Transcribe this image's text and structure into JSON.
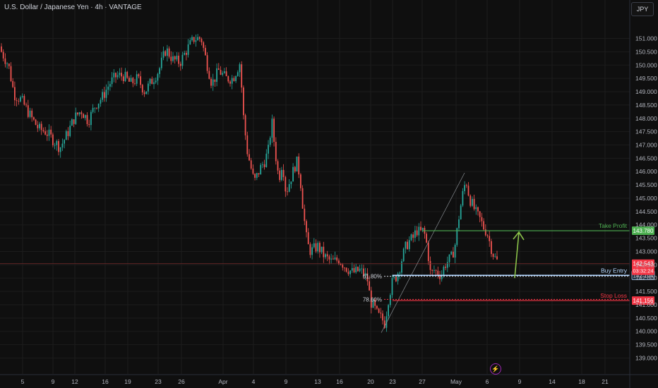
{
  "header": {
    "title": "U.S. Dollar / Japanese Yen · 4h · VANTAGE",
    "currency_button": "JPY"
  },
  "colors": {
    "bg": "#0f0f0f",
    "up": "#26a69a",
    "down": "#ef5350",
    "grid": "#1c1c1c",
    "axis_text": "#b2b5be",
    "tp": "#4caf50",
    "sl": "#f23645",
    "entry": "#b3d7ff",
    "arrow": "#8bc34a"
  },
  "icons": {
    "replay": "lightning-icon"
  },
  "chart_data": {
    "type": "candlestick",
    "title": "U.S. Dollar / Japanese Yen · 4h · VANTAGE",
    "y_ticks": [
      "151.000",
      "150.500",
      "150.000",
      "149.500",
      "149.000",
      "148.500",
      "148.000",
      "147.500",
      "147.000",
      "146.500",
      "146.000",
      "145.500",
      "145.000",
      "144.500",
      "144.000",
      "143.500",
      "143.000",
      "142.500",
      "142.000",
      "141.500",
      "141.000",
      "140.500",
      "140.000",
      "139.500",
      "139.000"
    ],
    "ylim": [
      138.8,
      151.65
    ],
    "x_ticks": [
      "5",
      "9",
      "12",
      "16",
      "19",
      "23",
      "26",
      "Apr",
      "4",
      "9",
      "13",
      "16",
      "20",
      "23",
      "27",
      "May",
      "6",
      "9",
      "14",
      "18",
      "21"
    ],
    "close_path": [
      [
        0,
        150.6
      ],
      [
        12,
        150.0
      ],
      [
        20,
        148.9
      ],
      [
        30,
        148.7
      ],
      [
        45,
        148.0
      ],
      [
        55,
        147.6
      ],
      [
        65,
        147.5
      ],
      [
        75,
        147.2
      ],
      [
        85,
        146.9
      ],
      [
        95,
        147.4
      ],
      [
        105,
        148.0
      ],
      [
        115,
        148.3
      ],
      [
        125,
        147.9
      ],
      [
        135,
        148.5
      ],
      [
        145,
        148.8
      ],
      [
        155,
        149.3
      ],
      [
        165,
        149.6
      ],
      [
        175,
        149.6
      ],
      [
        185,
        149.3
      ],
      [
        195,
        149.5
      ],
      [
        205,
        149.0
      ],
      [
        215,
        149.4
      ],
      [
        225,
        149.8
      ],
      [
        235,
        150.6
      ],
      [
        245,
        150.2
      ],
      [
        255,
        150.1
      ],
      [
        265,
        150.6
      ],
      [
        275,
        151.0
      ],
      [
        285,
        151.0
      ],
      [
        290,
        150.4
      ],
      [
        300,
        149.3
      ],
      [
        310,
        149.8
      ],
      [
        320,
        149.5
      ],
      [
        330,
        149.5
      ],
      [
        340,
        150.1
      ],
      [
        345,
        148.0
      ],
      [
        350,
        146.8
      ],
      [
        360,
        145.6
      ],
      [
        370,
        146.2
      ],
      [
        375,
        146.4
      ],
      [
        380,
        146.8
      ],
      [
        385,
        147.9
      ],
      [
        390,
        146.7
      ],
      [
        395,
        145.7
      ],
      [
        400,
        146.4
      ],
      [
        405,
        145.2
      ],
      [
        410,
        145.6
      ],
      [
        415,
        146.0
      ],
      [
        420,
        146.4
      ],
      [
        425,
        145.8
      ],
      [
        430,
        144.4
      ],
      [
        435,
        143.3
      ],
      [
        440,
        143.0
      ],
      [
        450,
        143.2
      ],
      [
        460,
        142.8
      ],
      [
        470,
        142.6
      ],
      [
        480,
        142.7
      ],
      [
        490,
        142.4
      ],
      [
        500,
        142.2
      ],
      [
        510,
        142.3
      ],
      [
        520,
        142.0
      ],
      [
        525,
        141.1
      ],
      [
        530,
        140.9
      ],
      [
        535,
        140.6
      ],
      [
        540,
        140.5
      ],
      [
        545,
        140.3
      ],
      [
        550,
        141.2
      ],
      [
        555,
        141.8
      ],
      [
        560,
        142.0
      ],
      [
        565,
        142.3
      ],
      [
        570,
        142.8
      ],
      [
        575,
        143.2
      ],
      [
        580,
        143.4
      ],
      [
        585,
        143.5
      ],
      [
        590,
        143.8
      ],
      [
        595,
        143.7
      ],
      [
        600,
        143.8
      ],
      [
        605,
        143.2
      ],
      [
        610,
        142.1
      ],
      [
        615,
        142.3
      ],
      [
        620,
        142.2
      ],
      [
        625,
        142.1
      ],
      [
        630,
        142.5
      ],
      [
        640,
        142.8
      ],
      [
        645,
        143.3
      ],
      [
        650,
        144.3
      ],
      [
        655,
        145.1
      ],
      [
        660,
        145.7
      ],
      [
        665,
        145.0
      ],
      [
        670,
        144.7
      ],
      [
        675,
        144.4
      ],
      [
        680,
        144.2
      ],
      [
        685,
        143.9
      ],
      [
        690,
        143.7
      ],
      [
        695,
        143.2
      ],
      [
        700,
        142.8
      ],
      [
        705,
        142.6
      ]
    ],
    "fib_levels": [
      {
        "label": "61.80%",
        "value": 142.07
      },
      {
        "label": "78.60%",
        "value": 141.2
      }
    ],
    "fib_anchor": {
      "x0": 540,
      "y0": 139.95,
      "x1": 658,
      "y1": 145.95
    },
    "levels": [
      {
        "name": "Take Profit",
        "value": 143.78,
        "price_label": "143.780"
      },
      {
        "name": "Buy Entry",
        "value": 142.104,
        "price_label": "142.104"
      },
      {
        "name": "Stop Loss",
        "value": 141.156,
        "price_label": "141.156"
      }
    ],
    "current_price": {
      "value": 142.543,
      "price_label": "142.543",
      "countdown": "03:32:24"
    },
    "arrow": {
      "x": 735,
      "from": 142.0,
      "to": 143.78
    }
  }
}
